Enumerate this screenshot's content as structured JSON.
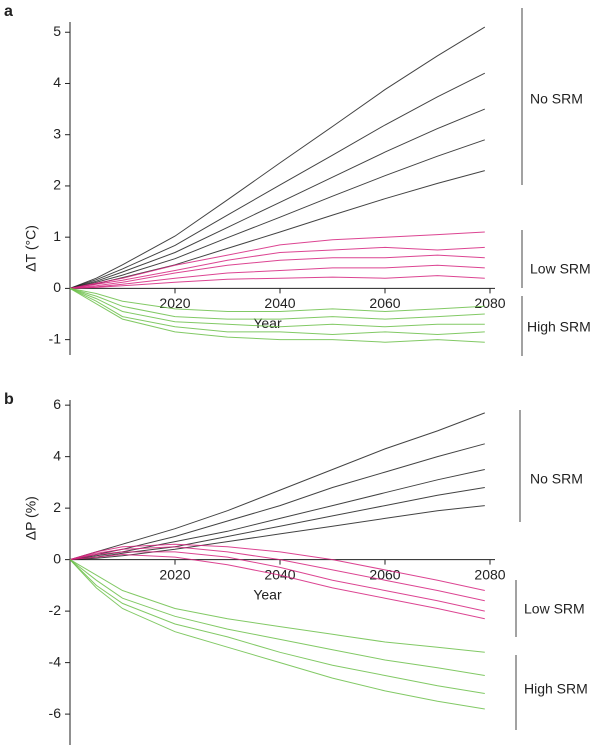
{
  "chart_data": [
    {
      "type": "line",
      "label": "a",
      "ylabel": "ΔT (°C)",
      "xlabel": "Year",
      "xlim": [
        2000,
        2080
      ],
      "xticks": [
        2020,
        2040,
        2060,
        2080
      ],
      "ylim": [
        -1.3,
        5.2
      ],
      "yticks": [
        -1,
        0,
        1,
        2,
        3,
        4,
        5
      ],
      "x": [
        2000,
        2005,
        2010,
        2020,
        2030,
        2040,
        2050,
        2060,
        2070,
        2079
      ],
      "groups": [
        {
          "name": "No SRM",
          "color": "#222222",
          "runs": [
            [
              0,
              0.2,
              0.46,
              1.02,
              1.73,
              2.45,
              3.16,
              3.88,
              4.54,
              5.1
            ],
            [
              0,
              0.17,
              0.38,
              0.84,
              1.43,
              2.02,
              2.6,
              3.19,
              3.74,
              4.2
            ],
            [
              0,
              0.14,
              0.32,
              0.7,
              1.19,
              1.68,
              2.17,
              2.66,
              3.12,
              3.5
            ],
            [
              0,
              0.12,
              0.26,
              0.58,
              0.99,
              1.39,
              1.8,
              2.2,
              2.58,
              2.9
            ],
            [
              0,
              0.09,
              0.21,
              0.46,
              0.78,
              1.1,
              1.43,
              1.75,
              2.05,
              2.3
            ]
          ]
        },
        {
          "name": "Low SRM",
          "color": "#d6247f",
          "runs": [
            [
              0,
              0.1,
              0.2,
              0.45,
              0.65,
              0.85,
              0.95,
              1.0,
              1.05,
              1.1
            ],
            [
              0,
              0.08,
              0.16,
              0.35,
              0.55,
              0.7,
              0.75,
              0.8,
              0.75,
              0.8
            ],
            [
              0,
              0.05,
              0.12,
              0.3,
              0.45,
              0.55,
              0.6,
              0.6,
              0.65,
              0.6
            ],
            [
              0,
              0.03,
              0.08,
              0.2,
              0.3,
              0.35,
              0.4,
              0.4,
              0.45,
              0.4
            ],
            [
              0,
              0.02,
              0.05,
              0.12,
              0.18,
              0.2,
              0.22,
              0.2,
              0.25,
              0.2
            ]
          ]
        },
        {
          "name": "High SRM",
          "color": "#6cbf4a",
          "runs": [
            [
              0,
              -0.1,
              -0.25,
              -0.4,
              -0.45,
              -0.45,
              -0.4,
              -0.45,
              -0.4,
              -0.35
            ],
            [
              0,
              -0.15,
              -0.35,
              -0.55,
              -0.6,
              -0.6,
              -0.55,
              -0.6,
              -0.55,
              -0.5
            ],
            [
              0,
              -0.2,
              -0.45,
              -0.65,
              -0.7,
              -0.75,
              -0.7,
              -0.75,
              -0.7,
              -0.7
            ],
            [
              0,
              -0.25,
              -0.55,
              -0.75,
              -0.85,
              -0.85,
              -0.9,
              -0.85,
              -0.9,
              -0.85
            ],
            [
              0,
              -0.3,
              -0.6,
              -0.85,
              -0.95,
              -1.0,
              -1.0,
              -1.05,
              -1.0,
              -1.05
            ]
          ]
        }
      ]
    },
    {
      "type": "line",
      "label": "b",
      "ylabel": "ΔP (%)",
      "xlabel": "Year",
      "xlim": [
        2000,
        2080
      ],
      "xticks": [
        2020,
        2040,
        2060,
        2080
      ],
      "ylim": [
        -7.2,
        6.2
      ],
      "yticks": [
        -6,
        -4,
        -2,
        0,
        2,
        4,
        6
      ],
      "x": [
        2000,
        2005,
        2010,
        2020,
        2030,
        2040,
        2050,
        2060,
        2070,
        2079
      ],
      "groups": [
        {
          "name": "No SRM",
          "color": "#222222",
          "runs": [
            [
              0,
              0.3,
              0.6,
              1.2,
              1.9,
              2.7,
              3.5,
              4.3,
              5.0,
              5.7
            ],
            [
              0,
              0.2,
              0.4,
              0.9,
              1.5,
              2.1,
              2.8,
              3.4,
              4.0,
              4.5
            ],
            [
              0,
              0.15,
              0.3,
              0.7,
              1.1,
              1.6,
              2.1,
              2.6,
              3.1,
              3.5
            ],
            [
              0,
              0.1,
              0.25,
              0.5,
              0.9,
              1.3,
              1.7,
              2.1,
              2.5,
              2.8
            ],
            [
              0,
              0.05,
              0.15,
              0.4,
              0.7,
              1.0,
              1.3,
              1.6,
              1.9,
              2.1
            ]
          ]
        },
        {
          "name": "Low SRM",
          "color": "#d6247f",
          "runs": [
            [
              0,
              0.3,
              0.5,
              0.6,
              0.5,
              0.3,
              0.0,
              -0.4,
              -0.8,
              -1.2
            ],
            [
              0,
              0.25,
              0.4,
              0.5,
              0.3,
              0.0,
              -0.4,
              -0.8,
              -1.2,
              -1.6
            ],
            [
              0,
              0.2,
              0.3,
              0.3,
              0.1,
              -0.3,
              -0.8,
              -1.2,
              -1.6,
              -2.0
            ],
            [
              0,
              0.1,
              0.2,
              0.1,
              -0.2,
              -0.6,
              -1.1,
              -1.5,
              -1.9,
              -2.3
            ]
          ]
        },
        {
          "name": "High SRM",
          "color": "#6cbf4a",
          "runs": [
            [
              0,
              -0.6,
              -1.2,
              -1.9,
              -2.3,
              -2.6,
              -2.9,
              -3.2,
              -3.4,
              -3.6
            ],
            [
              0,
              -0.8,
              -1.5,
              -2.2,
              -2.7,
              -3.1,
              -3.5,
              -3.9,
              -4.2,
              -4.5
            ],
            [
              0,
              -1.0,
              -1.7,
              -2.5,
              -3.0,
              -3.6,
              -4.1,
              -4.5,
              -4.9,
              -5.2
            ],
            [
              0,
              -1.1,
              -1.9,
              -2.8,
              -3.4,
              -4.0,
              -4.6,
              -5.1,
              -5.5,
              -5.8
            ]
          ]
        }
      ]
    }
  ]
}
